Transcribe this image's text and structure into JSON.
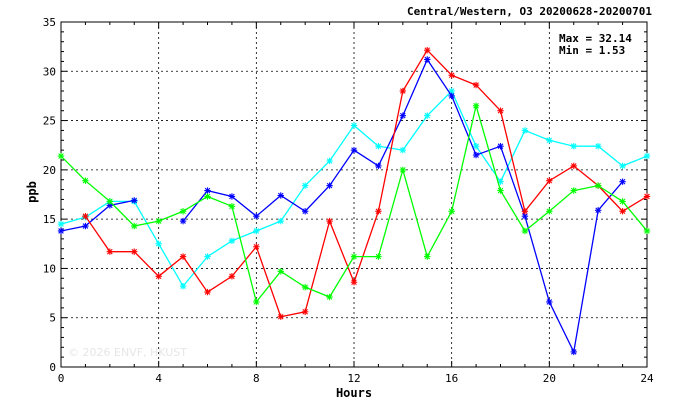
{
  "chart_data": {
    "type": "line",
    "title": "Central/Western, O3 20200628-20200701",
    "xlabel": "Hours",
    "ylabel": "ppb",
    "xlim": [
      0,
      24
    ],
    "ylim": [
      0,
      35
    ],
    "x_ticks": [
      0,
      4,
      8,
      12,
      16,
      20,
      24
    ],
    "y_ticks": [
      0,
      5,
      10,
      15,
      20,
      25,
      30,
      35
    ],
    "grid": true,
    "max_label": "Max = 32.14",
    "min_label": "Min =  1.53",
    "watermark": "© 2026  ENVF, HKUST",
    "x": [
      0,
      1,
      2,
      3,
      4,
      5,
      6,
      7,
      8,
      9,
      10,
      11,
      12,
      13,
      14,
      15,
      16,
      17,
      18,
      19,
      20,
      21,
      22,
      23,
      24
    ],
    "series": [
      {
        "color": "#00ffff",
        "values": [
          14.5,
          15.2,
          16.8,
          16.8,
          12.5,
          8.2,
          11.2,
          12.8,
          13.8,
          14.8,
          18.4,
          20.9,
          24.5,
          22.4,
          22.0,
          25.5,
          28.0,
          22.4,
          18.8,
          24.0,
          23.0,
          22.4,
          22.4,
          20.4,
          21.4
        ]
      },
      {
        "color": "#0000ff",
        "values": [
          13.8,
          14.3,
          16.4,
          16.9,
          null,
          14.8,
          17.9,
          17.3,
          15.3,
          17.4,
          15.8,
          18.4,
          22.0,
          20.4,
          25.5,
          31.2,
          27.5,
          21.5,
          22.4,
          15.3,
          6.6,
          1.53,
          15.9,
          18.8,
          null
        ]
      },
      {
        "color": "#ff0000",
        "values": [
          null,
          15.3,
          11.7,
          11.7,
          9.2,
          11.2,
          7.6,
          9.2,
          12.2,
          5.1,
          5.6,
          14.8,
          8.6,
          15.8,
          28.0,
          32.14,
          29.6,
          28.6,
          26.0,
          15.8,
          18.9,
          20.4,
          18.4,
          15.8,
          17.3
        ]
      },
      {
        "color": "#00ff00",
        "values": [
          21.4,
          18.9,
          16.8,
          14.3,
          14.8,
          15.8,
          17.3,
          16.3,
          6.6,
          9.7,
          8.1,
          7.1,
          11.2,
          11.2,
          20.0,
          11.2,
          15.8,
          26.5,
          17.9,
          13.8,
          15.8,
          17.9,
          18.4,
          16.8,
          13.8
        ]
      }
    ]
  }
}
